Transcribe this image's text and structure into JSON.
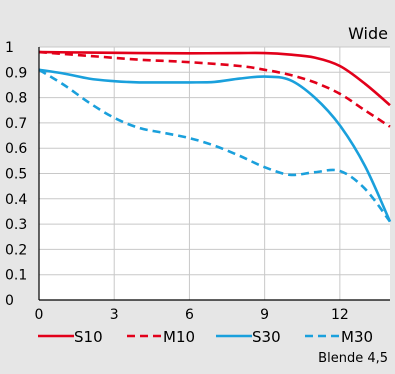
{
  "chart_data": {
    "type": "line",
    "title": "Wide",
    "footnote": "Blende 4,5",
    "xlabel": "",
    "ylabel": "",
    "xlim": [
      0,
      14
    ],
    "ylim": [
      0,
      1
    ],
    "x_ticks": [
      0,
      3,
      6,
      9,
      12
    ],
    "y_ticks": [
      0,
      0.1,
      0.2,
      0.3,
      0.4,
      0.5,
      0.6,
      0.7,
      0.8,
      0.9,
      1
    ],
    "grid": true,
    "legend_position": "bottom",
    "series": [
      {
        "name": "S10",
        "color": "#e2001a",
        "dash": "solid",
        "points": [
          [
            0,
            0.98
          ],
          [
            2,
            0.978
          ],
          [
            4,
            0.976
          ],
          [
            6,
            0.975
          ],
          [
            8,
            0.976
          ],
          [
            9,
            0.976
          ],
          [
            10,
            0.97
          ],
          [
            11,
            0.958
          ],
          [
            12,
            0.925
          ],
          [
            13,
            0.855
          ],
          [
            14,
            0.77
          ]
        ]
      },
      {
        "name": "M10",
        "color": "#e2001a",
        "dash": "dashed",
        "points": [
          [
            0,
            0.98
          ],
          [
            2,
            0.965
          ],
          [
            4,
            0.95
          ],
          [
            6,
            0.94
          ],
          [
            8,
            0.925
          ],
          [
            9,
            0.91
          ],
          [
            10,
            0.89
          ],
          [
            11,
            0.86
          ],
          [
            12,
            0.815
          ],
          [
            13,
            0.75
          ],
          [
            14,
            0.685
          ]
        ]
      },
      {
        "name": "S30",
        "color": "#1aa0dc",
        "dash": "solid",
        "points": [
          [
            0,
            0.91
          ],
          [
            1,
            0.895
          ],
          [
            2,
            0.875
          ],
          [
            3,
            0.865
          ],
          [
            4,
            0.86
          ],
          [
            5,
            0.86
          ],
          [
            6,
            0.86
          ],
          [
            7,
            0.862
          ],
          [
            8,
            0.875
          ],
          [
            9,
            0.883
          ],
          [
            10,
            0.87
          ],
          [
            11,
            0.8
          ],
          [
            12,
            0.69
          ],
          [
            13,
            0.53
          ],
          [
            14,
            0.31
          ]
        ]
      },
      {
        "name": "M30",
        "color": "#1aa0dc",
        "dash": "dashed",
        "points": [
          [
            0,
            0.91
          ],
          [
            1,
            0.85
          ],
          [
            2,
            0.78
          ],
          [
            3,
            0.72
          ],
          [
            4,
            0.68
          ],
          [
            5,
            0.66
          ],
          [
            6,
            0.64
          ],
          [
            7,
            0.61
          ],
          [
            8,
            0.57
          ],
          [
            9,
            0.525
          ],
          [
            10,
            0.495
          ],
          [
            11,
            0.505
          ],
          [
            12,
            0.51
          ],
          [
            13,
            0.44
          ],
          [
            14,
            0.31
          ]
        ]
      }
    ]
  }
}
